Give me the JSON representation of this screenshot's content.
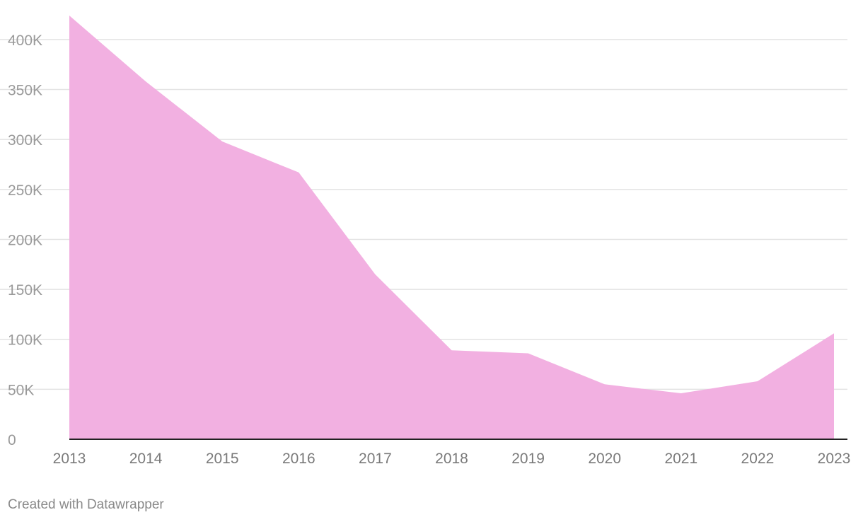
{
  "chart_data": {
    "type": "area",
    "x": [
      "2013",
      "2014",
      "2015",
      "2016",
      "2017",
      "2018",
      "2019",
      "2020",
      "2021",
      "2022",
      "2023"
    ],
    "series": [
      {
        "values": [
          424000,
          358000,
          298000,
          267000,
          165000,
          89000,
          86000,
          55000,
          46000,
          58000,
          106000
        ],
        "color": "#f2b0e1"
      }
    ],
    "y_ticks": [
      0,
      50000,
      100000,
      150000,
      200000,
      250000,
      300000,
      350000,
      400000
    ],
    "y_tick_labels": [
      "0",
      "50K",
      "100K",
      "150K",
      "200K",
      "250K",
      "300K",
      "350K",
      "400K"
    ],
    "ylim": [
      0,
      424000
    ],
    "grid": true,
    "title": "",
    "xlabel": "",
    "ylabel": ""
  },
  "footer": {
    "credit": "Created with Datawrapper"
  }
}
